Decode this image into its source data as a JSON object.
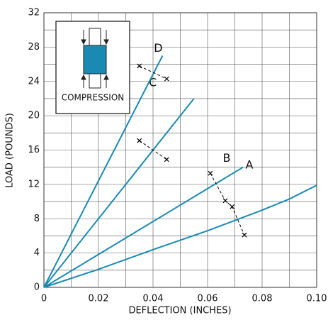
{
  "chart_data": {
    "type": "line",
    "xlabel": "DEFLECTION (INCHES)",
    "ylabel": "LOAD (POUNDS)",
    "inset_label": "COMPRESSION",
    "xlim": [
      0,
      0.1
    ],
    "xticks": [
      0,
      0.02,
      0.04,
      0.06,
      0.08,
      {
        "value": 0.1,
        "label": "0.10"
      }
    ],
    "x_minor_grid": [
      0.01,
      0.03,
      0.05,
      0.07,
      0.09
    ],
    "ylim": [
      0,
      32
    ],
    "yticks": [
      0,
      4,
      8,
      12,
      16,
      20,
      24,
      28,
      32
    ],
    "y_minor_grid": [
      2,
      6,
      10,
      14,
      18,
      22,
      26,
      30
    ],
    "grid": true,
    "series": [
      {
        "name": "A",
        "color": "#1a8ab4",
        "x": [
          0,
          0.02,
          0.04,
          0.06,
          0.08,
          0.09,
          0.1
        ],
        "values": [
          0,
          2.1,
          4.4,
          6.6,
          9.0,
          10.3,
          11.9
        ]
      },
      {
        "name": "B",
        "color": "#1a8ab4",
        "x": [
          0,
          0.073
        ],
        "values": [
          0,
          14
        ]
      },
      {
        "name": "C",
        "color": "#1a8ab4",
        "x": [
          0,
          0.055
        ],
        "values": [
          0,
          22
        ]
      },
      {
        "name": "D",
        "color": "#1a8ab4",
        "x": [
          0,
          0.0435
        ],
        "values": [
          0,
          27
        ]
      }
    ],
    "marker_series": [
      {
        "color": "#000000",
        "x": [
          0.035,
          0.045
        ],
        "values": [
          25.8,
          24.3
        ]
      },
      {
        "color": "#000000",
        "x": [
          0.035,
          0.045
        ],
        "values": [
          17.1,
          14.9
        ]
      },
      {
        "color": "#000000",
        "x": [
          0.061,
          0.0665,
          0.069,
          0.0735
        ],
        "values": [
          13.3,
          10.1,
          9.4,
          6.1
        ]
      }
    ]
  }
}
